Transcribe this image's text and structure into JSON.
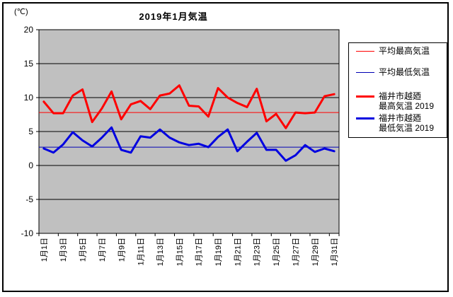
{
  "window": {
    "background_color": "#ffffff",
    "border_color": "#000000"
  },
  "chart_data": {
    "type": "line",
    "title": "2019年1月気温",
    "unit_label": "(℃)",
    "plot_bg_color": "#c0c0c0",
    "grid": true,
    "gridline_color": "#000000",
    "legend_position": "right",
    "ylim": [
      -10,
      20
    ],
    "yticks": [
      20,
      15,
      10,
      5,
      0,
      -5,
      -10
    ],
    "n_categories": 31,
    "x_label_interval": 2,
    "x_tick_labels": [
      "1月1日",
      "1月3日",
      "1月5日",
      "1月7日",
      "1月9日",
      "1月11日",
      "1月13日",
      "1月15日",
      "1月17日",
      "1月19日",
      "1月21日",
      "1月23日",
      "1月25日",
      "1月27日",
      "1月29日",
      "1月31日"
    ],
    "series": [
      {
        "name": "平均最高気温",
        "style": "average-line",
        "color": "#ff0000",
        "line_width": 1,
        "value": 7.8
      },
      {
        "name": "平均最低気温",
        "style": "average-line",
        "color": "#0000b4",
        "line_width": 1,
        "value": 2.7
      },
      {
        "name": "福井市越廼 最高気温 2019",
        "style": "series",
        "color": "#ff0000",
        "line_width": 3,
        "values": [
          9.4,
          7.7,
          7.7,
          10.3,
          11.2,
          6.4,
          8.4,
          10.9,
          6.8,
          9.0,
          9.5,
          8.3,
          10.3,
          10.6,
          11.8,
          8.8,
          8.7,
          7.2,
          11.4,
          10.0,
          9.2,
          8.6,
          11.3,
          6.5,
          7.6,
          5.5,
          7.8,
          7.7,
          7.8,
          10.2,
          10.5
        ]
      },
      {
        "name": "福井市越廼 最低気温 2019",
        "style": "series",
        "color": "#0000e0",
        "line_width": 3,
        "values": [
          2.5,
          1.9,
          3.1,
          4.9,
          3.7,
          2.8,
          4.1,
          5.6,
          2.3,
          1.9,
          4.3,
          4.1,
          5.3,
          4.1,
          3.4,
          3.0,
          3.2,
          2.7,
          4.2,
          5.3,
          2.1,
          3.5,
          4.8,
          2.3,
          2.3,
          0.7,
          1.5,
          3.0,
          2.0,
          2.5,
          2.1
        ]
      }
    ]
  },
  "legend": {
    "border_color": "#000000",
    "items": [
      {
        "label_lines": [
          "平均最高気温"
        ],
        "swatch_color": "#ff0000",
        "swatch_thickness": 1
      },
      {
        "label_lines": [
          "平均最低気温"
        ],
        "swatch_color": "#0000b4",
        "swatch_thickness": 1
      },
      {
        "label_lines": [
          "福井市越廼",
          "最高気温 2019"
        ],
        "swatch_color": "#ff0000",
        "swatch_thickness": 3
      },
      {
        "label_lines": [
          "福井市越廼",
          "最低気温 2019"
        ],
        "swatch_color": "#0000e0",
        "swatch_thickness": 3
      }
    ]
  }
}
